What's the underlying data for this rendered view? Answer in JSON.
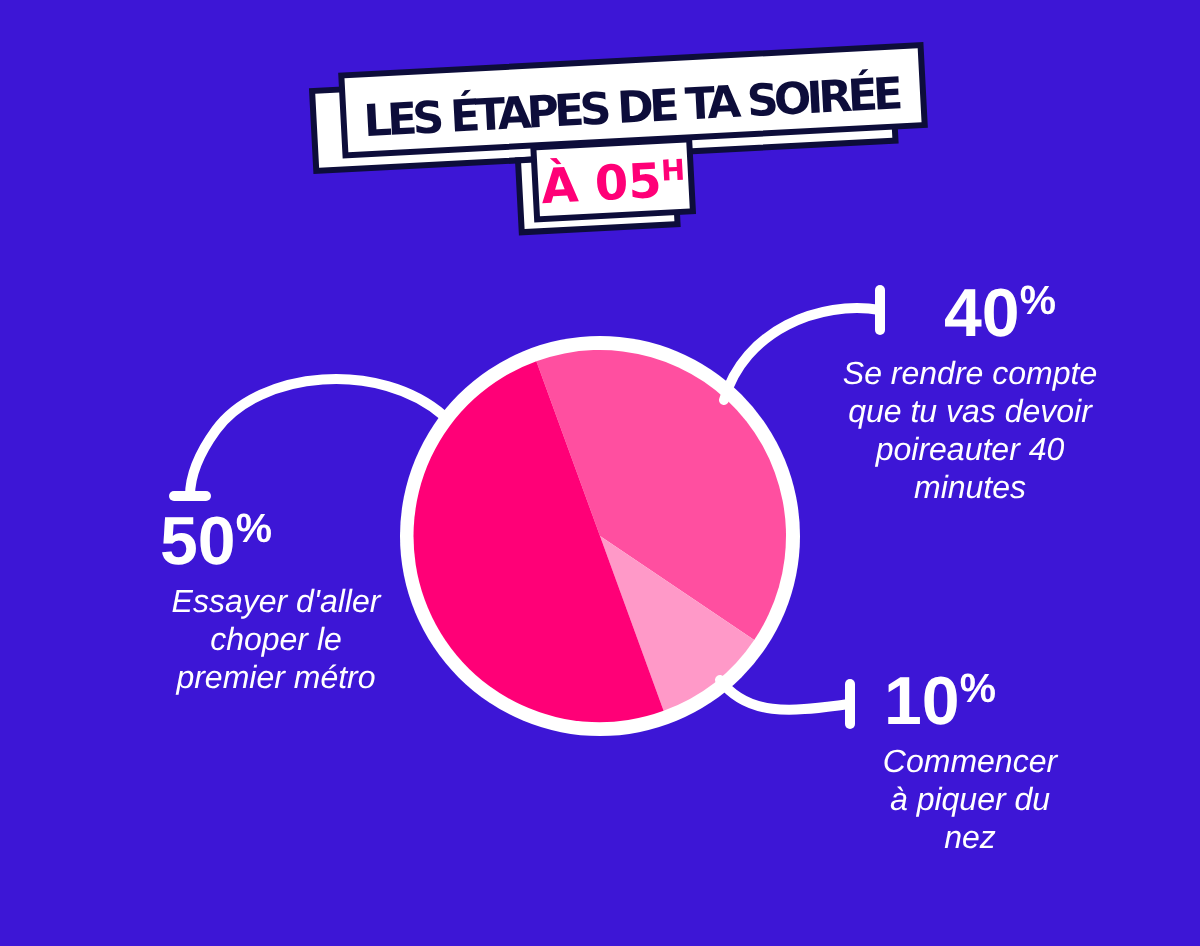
{
  "chart_data": {
    "type": "pie",
    "title": "LES ÉTAPES DE TA SOIRÉE",
    "subtitle": "À 05$^{H}$",
    "categories": [
      "Se rendre compte que tu vas devoir poireauter 40 minutes",
      "Commencer à piquer du nez",
      "Essayer d'aller choper le premier métro"
    ],
    "values": [
      40,
      10,
      50
    ],
    "colors": [
      "#ff4fa0",
      "#ff99c8",
      "#ff0077"
    ],
    "value_labels": [
      "40$^{%}$",
      "10$^{%}$",
      "50$^{%}$"
    ],
    "legend": false
  }
}
